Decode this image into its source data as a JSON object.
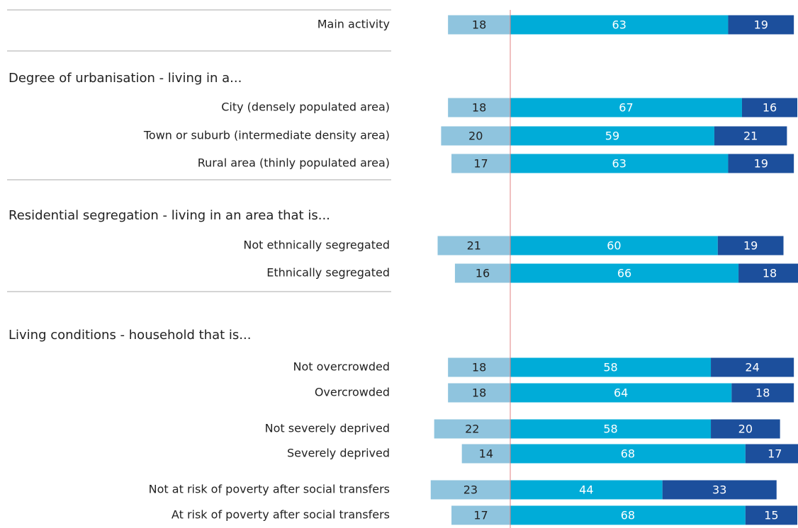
{
  "chart_data": {
    "type": "diverging_bar",
    "group_labels": [
      "Degree of urbanisation - living in a...",
      "Residential segregation  - living in an area that is...",
      "Living conditions - household that is..."
    ],
    "categories": [
      "Main activity",
      "City (densely populated area)",
      "Town or suburb (intermediate density area)",
      "Rural area (thinly populated area)",
      "Not ethnically segregated",
      "Ethnically segregated",
      "Not overcrowded",
      "Overcrowded",
      "Not severely deprived",
      "Severely deprived",
      "Not at risk of poverty after social transfers",
      "At risk of poverty after social transfers"
    ],
    "series": [
      {
        "color": "#8fc4de",
        "values": [
          18,
          18,
          20,
          17,
          21,
          16,
          18,
          18,
          22,
          14,
          23,
          17
        ]
      },
      {
        "color": "#00acd8",
        "values": [
          63,
          67,
          59,
          63,
          60,
          66,
          58,
          64,
          58,
          68,
          44,
          68
        ]
      },
      {
        "color": "#1c4f9c",
        "values": [
          19,
          16,
          21,
          19,
          19,
          18,
          24,
          18,
          20,
          17,
          33,
          15
        ]
      }
    ]
  }
}
